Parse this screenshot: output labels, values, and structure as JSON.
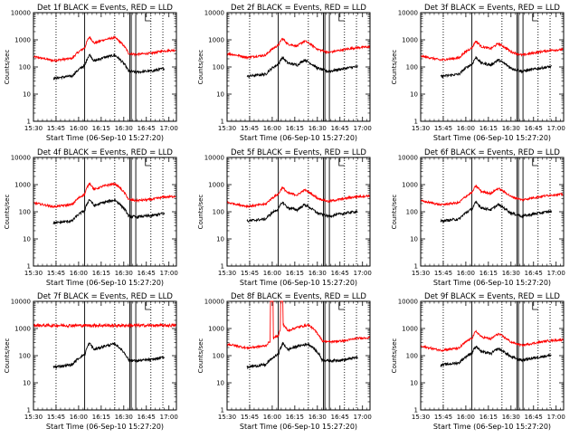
{
  "chart_data": [
    {
      "type": "line",
      "title": "Det 1f BLACK = Events, RED = LLD",
      "xlabel": "Start Time (06-Sep-10 15:27:20)",
      "ylabel": "Counts/sec",
      "yscale": "log",
      "ylim": [
        1,
        10000
      ],
      "xlim": [
        15.5,
        17.083
      ],
      "xticks": [
        "15:30",
        "15:45",
        "16:00",
        "16:15",
        "16:30",
        "16:45",
        "17:00"
      ],
      "ytick_labels": [
        "1",
        "10",
        "100",
        "1000",
        "10000"
      ],
      "vlines_solid": [
        16.067,
        16.567,
        16.583,
        16.633
      ],
      "vlines_dotted": [
        15.75,
        16.4,
        16.8,
        16.933
      ],
      "black_shape": "a",
      "red_shape": "a",
      "red_ratio": 4.5,
      "red_flat": false,
      "red_spikes": false,
      "series": [
        {
          "name": "Events",
          "color": "#000000"
        },
        {
          "name": "LLD",
          "color": "#ff0000"
        }
      ]
    },
    {
      "type": "line",
      "title": "Det 2f BLACK = Events, RED = LLD",
      "xlabel": "Start Time (06-Sep-10 15:27:20)",
      "ylabel": "Counts/sec",
      "yscale": "log",
      "ylim": [
        1,
        10000
      ],
      "xlim": [
        15.5,
        17.083
      ],
      "xticks": [
        "15:30",
        "15:45",
        "16:00",
        "16:15",
        "16:30",
        "16:45",
        "17:00"
      ],
      "ytick_labels": [
        "1",
        "10",
        "100",
        "1000",
        "10000"
      ],
      "vlines_solid": [
        16.067,
        16.567,
        16.583,
        16.633
      ],
      "vlines_dotted": [
        15.75,
        16.4,
        16.8,
        16.933
      ],
      "black_shape": "b",
      "red_shape": "b",
      "red_ratio": 5,
      "red_flat": false,
      "red_spikes": false,
      "series": [
        {
          "name": "Events",
          "color": "#000000"
        },
        {
          "name": "LLD",
          "color": "#ff0000"
        }
      ]
    },
    {
      "type": "line",
      "title": "Det 3f BLACK = Events, RED = LLD",
      "xlabel": "Start Time (06-Sep-10 15:27:20)",
      "ylabel": "Counts/sec",
      "yscale": "log",
      "ylim": [
        1,
        10000
      ],
      "xlim": [
        15.5,
        17.083
      ],
      "xticks": [
        "15:30",
        "15:45",
        "16:00",
        "16:15",
        "16:30",
        "16:45",
        "17:00"
      ],
      "ytick_labels": [
        "1",
        "10",
        "100",
        "1000",
        "10000"
      ],
      "vlines_solid": [
        16.067,
        16.567,
        16.583,
        16.633
      ],
      "vlines_dotted": [
        15.75,
        16.4,
        16.8,
        16.933
      ],
      "black_shape": "b",
      "red_shape": "b",
      "red_ratio": 4,
      "red_flat": false,
      "red_spikes": false,
      "series": [
        {
          "name": "Events",
          "color": "#000000"
        },
        {
          "name": "LLD",
          "color": "#ff0000"
        }
      ]
    },
    {
      "type": "line",
      "title": "Det 4f BLACK = Events, RED = LLD",
      "xlabel": "Start Time (06-Sep-10 15:27:20)",
      "ylabel": "Counts/sec",
      "yscale": "log",
      "ylim": [
        1,
        10000
      ],
      "xlim": [
        15.5,
        17.083
      ],
      "xticks": [
        "15:30",
        "15:45",
        "16:00",
        "16:15",
        "16:30",
        "16:45",
        "17:00"
      ],
      "ytick_labels": [
        "1",
        "10",
        "100",
        "1000",
        "10000"
      ],
      "vlines_solid": [
        16.067,
        16.567,
        16.583,
        16.633
      ],
      "vlines_dotted": [
        15.75,
        16.4,
        16.8,
        16.933
      ],
      "black_shape": "a",
      "red_shape": "a",
      "red_ratio": 4,
      "red_flat": false,
      "red_spikes": false,
      "series": [
        {
          "name": "Events",
          "color": "#000000"
        },
        {
          "name": "LLD",
          "color": "#ff0000"
        }
      ]
    },
    {
      "type": "line",
      "title": "Det 5f BLACK = Events, RED = LLD",
      "xlabel": "Start Time (06-Sep-10 15:27:20)",
      "ylabel": "Counts/sec",
      "yscale": "log",
      "ylim": [
        1,
        10000
      ],
      "xlim": [
        15.5,
        17.083
      ],
      "xticks": [
        "15:30",
        "15:45",
        "16:00",
        "16:15",
        "16:30",
        "16:45",
        "17:00"
      ],
      "ytick_labels": [
        "1",
        "10",
        "100",
        "1000",
        "10000"
      ],
      "vlines_solid": [
        16.067,
        16.567,
        16.583,
        16.633
      ],
      "vlines_dotted": [
        15.75,
        16.4,
        16.8,
        16.933
      ],
      "black_shape": "b",
      "red_shape": "b",
      "red_ratio": 3.5,
      "red_flat": false,
      "red_spikes": false,
      "series": [
        {
          "name": "Events",
          "color": "#000000"
        },
        {
          "name": "LLD",
          "color": "#ff0000"
        }
      ]
    },
    {
      "type": "line",
      "title": "Det 6f BLACK = Events, RED = LLD",
      "xlabel": "Start Time (06-Sep-10 15:27:20)",
      "ylabel": "Counts/sec",
      "yscale": "log",
      "ylim": [
        1,
        10000
      ],
      "xlim": [
        15.5,
        17.083
      ],
      "xticks": [
        "15:30",
        "15:45",
        "16:00",
        "16:15",
        "16:30",
        "16:45",
        "17:00"
      ],
      "ytick_labels": [
        "1",
        "10",
        "100",
        "1000",
        "10000"
      ],
      "vlines_solid": [
        16.067,
        16.567,
        16.583,
        16.633
      ],
      "vlines_dotted": [
        15.75,
        16.4,
        16.8,
        16.933
      ],
      "black_shape": "b",
      "red_shape": "b",
      "red_ratio": 4,
      "red_flat": false,
      "red_spikes": false,
      "series": [
        {
          "name": "Events",
          "color": "#000000"
        },
        {
          "name": "LLD",
          "color": "#ff0000"
        }
      ]
    },
    {
      "type": "line",
      "title": "Det 7f BLACK = Events, RED = LLD",
      "xlabel": "Start Time (06-Sep-10 15:27:20)",
      "ylabel": "Counts/sec",
      "yscale": "log",
      "ylim": [
        1,
        10000
      ],
      "xlim": [
        15.5,
        17.083
      ],
      "xticks": [
        "15:30",
        "15:45",
        "16:00",
        "16:15",
        "16:30",
        "16:45",
        "17:00"
      ],
      "ytick_labels": [
        "1",
        "10",
        "100",
        "1000",
        "10000"
      ],
      "vlines_solid": [
        16.067,
        16.567,
        16.583,
        16.633
      ],
      "vlines_dotted": [
        15.75,
        16.4,
        16.8,
        16.933
      ],
      "black_shape": "a",
      "red_shape": "flat",
      "red_ratio": 1,
      "red_flat": true,
      "red_level": 1300,
      "red_spikes": false,
      "series": [
        {
          "name": "Events",
          "color": "#000000"
        },
        {
          "name": "LLD",
          "color": "#ff0000"
        }
      ]
    },
    {
      "type": "line",
      "title": "Det 8f BLACK = Events, RED = LLD",
      "xlabel": "Start Time (06-Sep-10 15:27:20)",
      "ylabel": "Counts/sec",
      "yscale": "log",
      "ylim": [
        1,
        10000
      ],
      "xlim": [
        15.5,
        17.083
      ],
      "xticks": [
        "15:30",
        "15:45",
        "16:00",
        "16:15",
        "16:30",
        "16:45",
        "17:00"
      ],
      "ytick_labels": [
        "1",
        "10",
        "100",
        "1000",
        "10000"
      ],
      "vlines_solid": [
        16.067,
        16.567,
        16.583,
        16.633
      ],
      "vlines_dotted": [
        15.75,
        16.4,
        16.8,
        16.933
      ],
      "black_shape": "a",
      "red_shape": "a",
      "red_ratio": 5,
      "red_flat": false,
      "red_spikes": true,
      "series": [
        {
          "name": "Events",
          "color": "#000000"
        },
        {
          "name": "LLD",
          "color": "#ff0000"
        }
      ]
    },
    {
      "type": "line",
      "title": "Det 9f BLACK = Events, RED = LLD",
      "xlabel": "Start Time (06-Sep-10 15:27:20)",
      "ylabel": "Counts/sec",
      "yscale": "log",
      "ylim": [
        1,
        10000
      ],
      "xlim": [
        15.5,
        17.083
      ],
      "xticks": [
        "15:30",
        "15:45",
        "16:00",
        "16:15",
        "16:30",
        "16:45",
        "17:00"
      ],
      "ytick_labels": [
        "1",
        "10",
        "100",
        "1000",
        "10000"
      ],
      "vlines_solid": [
        16.067,
        16.567,
        16.583,
        16.633
      ],
      "vlines_dotted": [
        15.75,
        16.4,
        16.8,
        16.933
      ],
      "black_shape": "b",
      "red_shape": "b",
      "red_ratio": 3.5,
      "red_flat": false,
      "red_spikes": false,
      "series": [
        {
          "name": "Events",
          "color": "#000000"
        },
        {
          "name": "LLD",
          "color": "#ff0000"
        }
      ]
    }
  ]
}
